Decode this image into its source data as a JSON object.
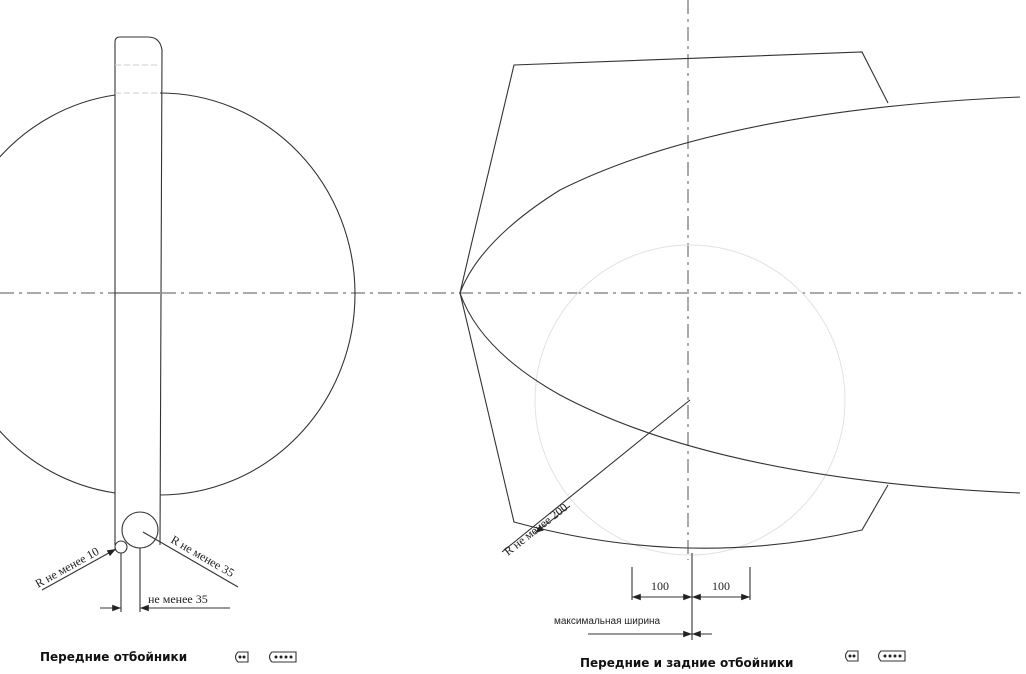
{
  "left_figure": {
    "title": "Передние отбойники",
    "dim_r10": "R не менее 10",
    "dim_r35": "R не менее 35",
    "dim_width": "не менее 35"
  },
  "right_figure": {
    "title": "Передние и задние отбойники",
    "dim_r200": "R не менее 200",
    "dim_left": "100",
    "dim_right": "100",
    "dim_max_width": "максимальная ширина"
  },
  "icons": [
    "bumper-2-dot-icon",
    "bumper-4-dot-icon"
  ]
}
